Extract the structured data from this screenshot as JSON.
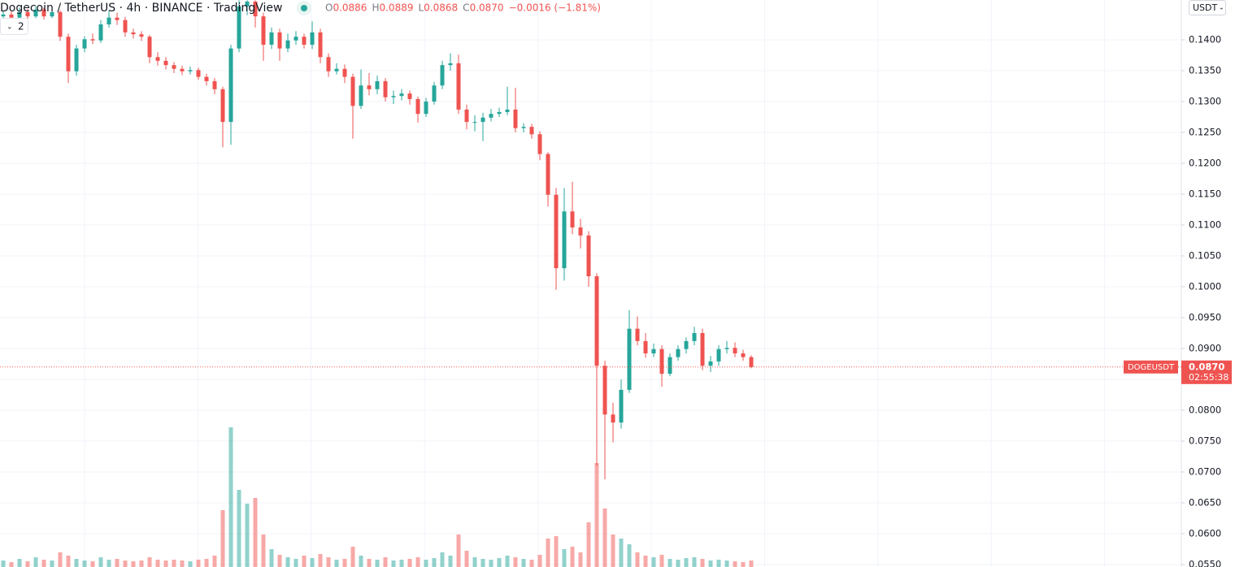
{
  "header": {
    "symbol": "Dogecoin / TetherUS · 4h · BINANCE · TradingView",
    "legend": [
      {
        "key": "O",
        "value": "0.0886"
      },
      {
        "key": "H",
        "value": "0.0889"
      },
      {
        "key": "L",
        "value": "0.0868"
      },
      {
        "key": "C",
        "value": "0.0870"
      }
    ],
    "change": "−0.0016 (−1.81%)",
    "indicator_count": "2",
    "currency": "USDT"
  },
  "chart_data": {
    "type": "candlestick",
    "ylim": [
      0.0546,
      0.14645
    ],
    "yticks": [
      {
        "value": 0.055,
        "label": "0.0550"
      },
      {
        "value": 0.06,
        "label": "0.0600"
      },
      {
        "value": 0.065,
        "label": "0.0650"
      },
      {
        "value": 0.07,
        "label": "0.0700"
      },
      {
        "value": 0.075,
        "label": "0.0750"
      },
      {
        "value": 0.08,
        "label": "0.0800"
      },
      {
        "value": 0.085,
        "label": "0.0850"
      },
      {
        "value": 0.09,
        "label": "0.0900"
      },
      {
        "value": 0.095,
        "label": "0.0950"
      },
      {
        "value": 0.1,
        "label": "0.1000"
      },
      {
        "value": 0.105,
        "label": "0.1050"
      },
      {
        "value": 0.11,
        "label": "0.1100"
      },
      {
        "value": 0.115,
        "label": "0.1150"
      },
      {
        "value": 0.12,
        "label": "0.1200"
      },
      {
        "value": 0.125,
        "label": "0.1250"
      },
      {
        "value": 0.13,
        "label": "0.1300"
      },
      {
        "value": 0.135,
        "label": "0.1350"
      },
      {
        "value": 0.14,
        "label": "0.1400"
      }
    ],
    "grid": true,
    "series": [
      {
        "name": "DOGEUSDT",
        "up_color": "#26a69a",
        "down_color": "#ef5350",
        "open": [
          0.1438,
          0.1441,
          0.1436,
          0.1445,
          0.1438,
          0.1449,
          0.1438,
          0.1445,
          0.1405,
          0.1349,
          0.1386,
          0.1401,
          0.1399,
          0.1425,
          0.1436,
          0.1432,
          0.1412,
          0.1409,
          0.1405,
          0.1372,
          0.1366,
          0.1359,
          0.1353,
          0.1349,
          0.1351,
          0.134,
          0.1333,
          0.132,
          0.1267,
          0.1386,
          0.1454,
          0.1462,
          0.1438,
          0.1392,
          0.1412,
          0.1386,
          0.1399,
          0.1405,
          0.1392,
          0.1412,
          0.1372,
          0.1349,
          0.1353,
          0.134,
          0.1293,
          0.1326,
          0.132,
          0.1333,
          0.1307,
          0.1309,
          0.1313,
          0.1304,
          0.128,
          0.13,
          0.1326,
          0.1359,
          0.1362,
          0.1287,
          0.1267,
          0.1267,
          0.1274,
          0.128,
          0.1283,
          0.1287,
          0.1257,
          0.1259,
          0.1247,
          0.1215,
          0.1149,
          0.103,
          0.1122,
          0.1096,
          0.1083,
          0.1017,
          0.0872,
          0.0793,
          0.078,
          0.0833,
          0.0932,
          0.0912,
          0.0892,
          0.0899,
          0.0859,
          0.0886,
          0.0899,
          0.0912,
          0.0925,
          0.0872,
          0.0879,
          0.0899,
          0.0901,
          0.0892,
          0.0886
        ],
        "high": [
          0.1447,
          0.1446,
          0.1452,
          0.145,
          0.1455,
          0.1452,
          0.145,
          0.1448,
          0.141,
          0.1392,
          0.1406,
          0.141,
          0.1432,
          0.1448,
          0.1444,
          0.1437,
          0.1418,
          0.1414,
          0.1408,
          0.138,
          0.1372,
          0.1364,
          0.1358,
          0.1357,
          0.1355,
          0.1345,
          0.1338,
          0.1324,
          0.1392,
          0.1464,
          0.1464,
          0.1464,
          0.1444,
          0.142,
          0.1418,
          0.141,
          0.1414,
          0.141,
          0.143,
          0.1418,
          0.1378,
          0.1362,
          0.136,
          0.1345,
          0.1352,
          0.1346,
          0.1342,
          0.1338,
          0.1318,
          0.132,
          0.1318,
          0.1308,
          0.1306,
          0.1332,
          0.1366,
          0.1378,
          0.1376,
          0.1295,
          0.1278,
          0.1282,
          0.1288,
          0.129,
          0.1324,
          0.1322,
          0.1265,
          0.1264,
          0.1252,
          0.1218,
          0.116,
          0.116,
          0.117,
          0.111,
          0.109,
          0.1022,
          0.088,
          0.0812,
          0.085,
          0.0962,
          0.0952,
          0.0925,
          0.0908,
          0.0905,
          0.0892,
          0.0905,
          0.0918,
          0.0935,
          0.0932,
          0.0888,
          0.0905,
          0.0912,
          0.091,
          0.0898,
          0.0889
        ],
        "low": [
          0.1432,
          0.143,
          0.1433,
          0.1434,
          0.1435,
          0.1433,
          0.1435,
          0.1398,
          0.133,
          0.1342,
          0.138,
          0.1393,
          0.1395,
          0.142,
          0.1424,
          0.1405,
          0.1402,
          0.1398,
          0.1362,
          0.1358,
          0.1352,
          0.1346,
          0.1343,
          0.1344,
          0.1335,
          0.1326,
          0.1312,
          0.1226,
          0.123,
          0.138,
          0.144,
          0.142,
          0.1366,
          0.1385,
          0.1366,
          0.138,
          0.1392,
          0.1386,
          0.1385,
          0.1362,
          0.134,
          0.1344,
          0.133,
          0.124,
          0.1288,
          0.131,
          0.1312,
          0.13,
          0.1296,
          0.1302,
          0.1295,
          0.1266,
          0.1275,
          0.1295,
          0.132,
          0.135,
          0.128,
          0.1255,
          0.1252,
          0.1236,
          0.1268,
          0.1275,
          0.1278,
          0.125,
          0.125,
          0.124,
          0.1205,
          0.113,
          0.0995,
          0.101,
          0.1085,
          0.1062,
          0.1,
          0.071,
          0.0688,
          0.0748,
          0.077,
          0.0828,
          0.0905,
          0.0885,
          0.0886,
          0.0838,
          0.0855,
          0.088,
          0.0892,
          0.0905,
          0.0865,
          0.0862,
          0.0872,
          0.0892,
          0.0886,
          0.088,
          0.0868
        ],
        "close": [
          0.1441,
          0.1436,
          0.1445,
          0.1438,
          0.1449,
          0.1438,
          0.1445,
          0.1405,
          0.1349,
          0.1386,
          0.1401,
          0.1399,
          0.1425,
          0.1436,
          0.1432,
          0.1412,
          0.1409,
          0.1405,
          0.1372,
          0.1366,
          0.1359,
          0.1353,
          0.1349,
          0.1351,
          0.134,
          0.1333,
          0.132,
          0.1267,
          0.1386,
          0.1454,
          0.1462,
          0.1438,
          0.1392,
          0.1412,
          0.1386,
          0.1399,
          0.1405,
          0.1392,
          0.1412,
          0.1372,
          0.1349,
          0.1353,
          0.134,
          0.1293,
          0.1326,
          0.132,
          0.1333,
          0.1307,
          0.1309,
          0.1313,
          0.1304,
          0.128,
          0.13,
          0.1326,
          0.1359,
          0.1362,
          0.1287,
          0.1267,
          0.1267,
          0.1274,
          0.128,
          0.1283,
          0.1287,
          0.1257,
          0.1259,
          0.1247,
          0.1215,
          0.1149,
          0.103,
          0.1122,
          0.1096,
          0.1083,
          0.1017,
          0.0872,
          0.0793,
          0.078,
          0.0833,
          0.0932,
          0.0912,
          0.0892,
          0.0899,
          0.0859,
          0.0886,
          0.0899,
          0.0912,
          0.0925,
          0.0872,
          0.0879,
          0.0899,
          0.0901,
          0.0892,
          0.0886,
          0.087
        ],
        "volume": [
          8,
          6,
          10,
          7,
          12,
          9,
          8,
          18,
          14,
          10,
          8,
          7,
          12,
          9,
          10,
          8,
          7,
          8,
          12,
          9,
          8,
          9,
          8,
          7,
          9,
          10,
          14,
          70,
          172,
          95,
          78,
          85,
          40,
          22,
          15,
          12,
          10,
          14,
          11,
          16,
          12,
          9,
          10,
          25,
          14,
          10,
          9,
          12,
          8,
          9,
          10,
          12,
          9,
          11,
          18,
          14,
          40,
          20,
          12,
          10,
          9,
          11,
          14,
          12,
          10,
          9,
          15,
          35,
          38,
          22,
          25,
          18,
          55,
          128,
          72,
          40,
          35,
          28,
          18,
          14,
          12,
          15,
          10,
          9,
          11,
          12,
          10,
          8,
          9,
          8,
          7,
          6,
          8
        ]
      }
    ],
    "last_price": {
      "value": 0.087,
      "label": "0.0870"
    },
    "countdown": "02:55:38"
  }
}
